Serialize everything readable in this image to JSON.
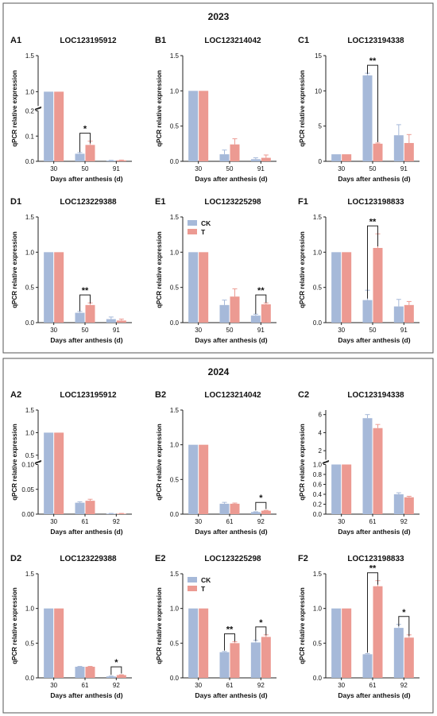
{
  "colors": {
    "ck": "#a6b9d9",
    "t": "#ec9a92",
    "axis": "#222222",
    "frame": "#555555"
  },
  "legend": {
    "ck": "CK",
    "t": "T"
  },
  "sections": [
    {
      "year": "2023"
    },
    {
      "year": "2024"
    }
  ],
  "chart_data": [
    {
      "type": "bar",
      "label": "A1",
      "title": "LOC123195912",
      "ylabel": "qPCR relative expression",
      "xlabel": "Days after anthesis (d)",
      "categories": [
        "30",
        "50",
        "91"
      ],
      "ck": [
        1.0,
        0.03,
        0.003
      ],
      "t": [
        1.0,
        0.065,
        0.004
      ],
      "ck_err": [
        0,
        0.005,
        0.001
      ],
      "t_err": [
        0,
        0.015,
        0.001
      ],
      "scale": "broken",
      "break_low": [
        0,
        0.2
      ],
      "break_high": [
        0.8,
        1.5
      ],
      "ticks_low": [
        "0.0",
        "0.1",
        "0.2"
      ],
      "ticks_high": [
        "1.0",
        "1.5"
      ],
      "legend": false,
      "sig": [
        {
          "i": 1,
          "text": "*"
        }
      ]
    },
    {
      "type": "bar",
      "label": "B1",
      "title": "LOC123214042",
      "ylabel": "qPCR relative expression",
      "xlabel": "Days after anthesis (d)",
      "categories": [
        "30",
        "50",
        "91"
      ],
      "ck": [
        1.0,
        0.1,
        0.03
      ],
      "t": [
        1.0,
        0.24,
        0.05
      ],
      "ck_err": [
        0,
        0.06,
        0.02
      ],
      "t_err": [
        0,
        0.08,
        0.04
      ],
      "scale": "linear",
      "ylim": [
        0,
        1.5
      ],
      "ticks": [
        "0.0",
        "0.5",
        "1.0",
        "1.5"
      ],
      "legend": false,
      "sig": []
    },
    {
      "type": "bar",
      "label": "C1",
      "title": "LOC123194338",
      "ylabel": "qPCR relative expression",
      "xlabel": "Days after anthesis (d)",
      "categories": [
        "30",
        "50",
        "91"
      ],
      "ck": [
        1.0,
        12.2,
        3.7
      ],
      "t": [
        1.0,
        2.5,
        2.6
      ],
      "ck_err": [
        0,
        0.3,
        1.5
      ],
      "t_err": [
        0,
        0.1,
        1.2
      ],
      "scale": "linear",
      "ylim": [
        0,
        15
      ],
      "ticks": [
        "0",
        "5",
        "10",
        "15"
      ],
      "legend": false,
      "sig": [
        {
          "i": 1,
          "text": "**"
        }
      ]
    },
    {
      "type": "bar",
      "label": "D1",
      "title": "LOC123229388",
      "ylabel": "qPCR relative expression",
      "xlabel": "Days after anthesis (d)",
      "categories": [
        "30",
        "50",
        "91"
      ],
      "ck": [
        1.0,
        0.14,
        0.05
      ],
      "t": [
        1.0,
        0.25,
        0.03
      ],
      "ck_err": [
        0,
        0.02,
        0.03
      ],
      "t_err": [
        0,
        0.03,
        0.02
      ],
      "scale": "linear",
      "ylim": [
        0,
        1.5
      ],
      "ticks": [
        "0.0",
        "0.5",
        "1.0",
        "1.5"
      ],
      "legend": false,
      "sig": [
        {
          "i": 1,
          "text": "**"
        }
      ]
    },
    {
      "type": "bar",
      "label": "E1",
      "title": "LOC123225298",
      "ylabel": "qPCR relative expression",
      "xlabel": "Days after anthesis (d)",
      "categories": [
        "30",
        "50",
        "91"
      ],
      "ck": [
        1.0,
        0.25,
        0.1
      ],
      "t": [
        1.0,
        0.37,
        0.26
      ],
      "ck_err": [
        0,
        0.07,
        0.02
      ],
      "t_err": [
        0,
        0.11,
        0.02
      ],
      "scale": "linear",
      "ylim": [
        0,
        1.5
      ],
      "ticks": [
        "0.0",
        "0.5",
        "1.0",
        "1.5"
      ],
      "legend": true,
      "sig": [
        {
          "i": 2,
          "text": "**"
        }
      ]
    },
    {
      "type": "bar",
      "label": "F1",
      "title": "LOC123198833",
      "ylabel": "qPCR relative expression",
      "xlabel": "Days after anthesis (d)",
      "categories": [
        "30",
        "50",
        "91"
      ],
      "ck": [
        1.0,
        0.32,
        0.23
      ],
      "t": [
        1.0,
        1.06,
        0.25
      ],
      "ck_err": [
        0,
        0.14,
        0.1
      ],
      "t_err": [
        0,
        0.2,
        0.05
      ],
      "scale": "linear",
      "ylim": [
        0,
        1.5
      ],
      "ticks": [
        "0.0",
        "0.5",
        "1.0",
        "1.5"
      ],
      "legend": false,
      "sig": [
        {
          "i": 1,
          "text": "**"
        }
      ]
    },
    {
      "type": "bar",
      "label": "A2",
      "title": "LOC123195912",
      "ylabel": "qPCR relative expression",
      "xlabel": "Days after anthesis (d)",
      "categories": [
        "30",
        "61",
        "92"
      ],
      "ck": [
        1.0,
        0.023,
        0.001
      ],
      "t": [
        1.0,
        0.027,
        0.001
      ],
      "ck_err": [
        0,
        0.002,
        0.0005
      ],
      "t_err": [
        0,
        0.003,
        0.0005
      ],
      "scale": "broken",
      "break_low": [
        0,
        0.1
      ],
      "break_high": [
        0.4,
        1.5
      ],
      "ticks_low": [
        "0.00",
        "0.05",
        "0.10"
      ],
      "ticks_high": [
        "0.5",
        "1.0",
        "1.5"
      ],
      "legend": false,
      "sig": []
    },
    {
      "type": "bar",
      "label": "B2",
      "title": "LOC123214042",
      "ylabel": "qPCR relative expression",
      "xlabel": "Days after anthesis (d)",
      "categories": [
        "30",
        "61",
        "92"
      ],
      "ck": [
        1.0,
        0.15,
        0.03
      ],
      "t": [
        1.0,
        0.15,
        0.05
      ],
      "ck_err": [
        0,
        0.02,
        0.005
      ],
      "t_err": [
        0,
        0.01,
        0.005
      ],
      "scale": "linear",
      "ylim": [
        0,
        1.5
      ],
      "ticks": [
        "0.0",
        "0.5",
        "1.0",
        "1.5"
      ],
      "legend": false,
      "sig": [
        {
          "i": 2,
          "text": "*"
        }
      ]
    },
    {
      "type": "bar",
      "label": "C2",
      "title": "LOC123194338",
      "ylabel": "qPCR relative expression",
      "xlabel": "Days after anthesis (d)",
      "categories": [
        "30",
        "61",
        "92"
      ],
      "ck": [
        1.0,
        5.6,
        0.4
      ],
      "t": [
        1.0,
        4.5,
        0.34
      ],
      "ck_err": [
        0,
        0.4,
        0.03
      ],
      "t_err": [
        0,
        0.4,
        0.02
      ],
      "scale": "broken",
      "break_low": [
        0,
        1.0
      ],
      "break_high": [
        1.0,
        6.5
      ],
      "ticks_low": [
        "0.0",
        "0.2",
        "0.4",
        "0.6",
        "0.8",
        "1.0"
      ],
      "ticks_high": [
        "2",
        "4",
        "6"
      ],
      "legend": false,
      "sig": []
    },
    {
      "type": "bar",
      "label": "D2",
      "title": "LOC123229388",
      "ylabel": "qPCR relative expression",
      "xlabel": "Days after anthesis (d)",
      "categories": [
        "30",
        "61",
        "92"
      ],
      "ck": [
        1.0,
        0.16,
        0.02
      ],
      "t": [
        1.0,
        0.16,
        0.04
      ],
      "ck_err": [
        0,
        0.005,
        0.005
      ],
      "t_err": [
        0,
        0.005,
        0.005
      ],
      "scale": "linear",
      "ylim": [
        0,
        1.5
      ],
      "ticks": [
        "0.0",
        "0.5",
        "1.0",
        "1.5"
      ],
      "legend": false,
      "sig": [
        {
          "i": 2,
          "text": "*"
        }
      ]
    },
    {
      "type": "bar",
      "label": "E2",
      "title": "LOC123225298",
      "ylabel": "qPCR relative expression",
      "xlabel": "Days after anthesis (d)",
      "categories": [
        "30",
        "61",
        "92"
      ],
      "ck": [
        1.0,
        0.37,
        0.51
      ],
      "t": [
        1.0,
        0.5,
        0.59
      ],
      "ck_err": [
        0,
        0.01,
        0.03
      ],
      "t_err": [
        0,
        0.02,
        0.03
      ],
      "scale": "linear",
      "ylim": [
        0,
        1.5
      ],
      "ticks": [
        "0.0",
        "0.5",
        "1.0",
        "1.5"
      ],
      "legend": true,
      "sig": [
        {
          "i": 1,
          "text": "**"
        },
        {
          "i": 2,
          "text": "*"
        }
      ]
    },
    {
      "type": "bar",
      "label": "F2",
      "title": "LOC123198833",
      "ylabel": "qPCR relative expression",
      "xlabel": "Days after anthesis (d)",
      "categories": [
        "30",
        "61",
        "92"
      ],
      "ck": [
        1.0,
        0.34,
        0.72
      ],
      "t": [
        1.0,
        1.32,
        0.58
      ],
      "ck_err": [
        0,
        0.01,
        0.05
      ],
      "t_err": [
        0,
        0.08,
        0.04
      ],
      "scale": "linear",
      "ylim": [
        0,
        1.5
      ],
      "ticks": [
        "0.0",
        "0.5",
        "1.0",
        "1.5"
      ],
      "legend": false,
      "sig": [
        {
          "i": 1,
          "text": "**"
        },
        {
          "i": 2,
          "text": "*"
        }
      ]
    }
  ]
}
